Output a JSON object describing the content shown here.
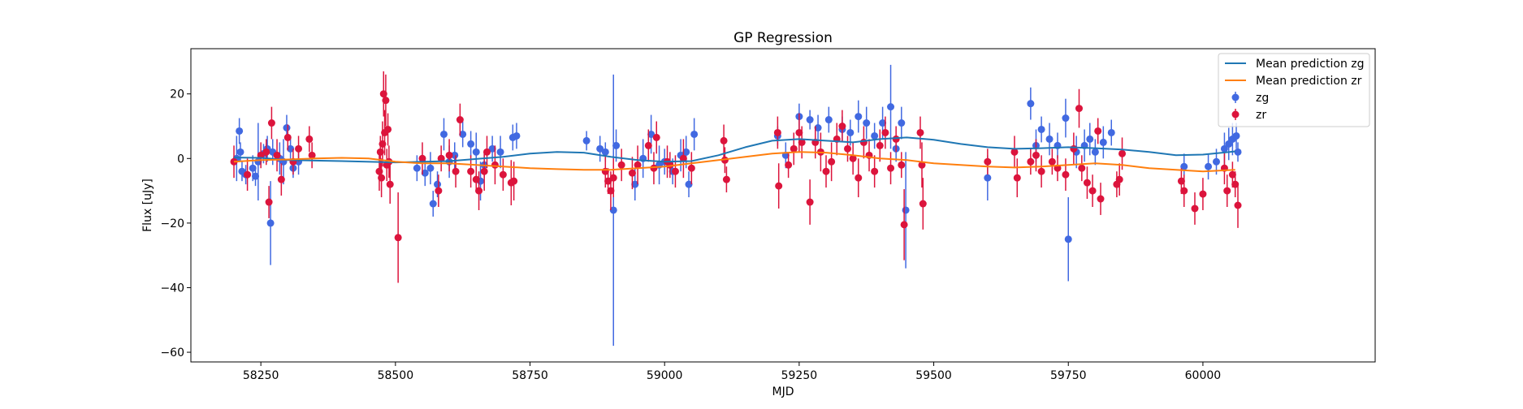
{
  "chart_data": {
    "type": "scatter",
    "title": "GP Regression",
    "xlabel": "MJD",
    "ylabel": "Flux [uJy]",
    "xlim": [
      58120,
      60320
    ],
    "ylim": [
      -63,
      34
    ],
    "xticks": [
      58250,
      58500,
      58750,
      59000,
      59250,
      59500,
      59750,
      60000
    ],
    "yticks": [
      -60,
      -40,
      -20,
      0,
      20
    ],
    "grid": false,
    "legend_position": "top-right",
    "lines": [
      {
        "name": "Mean prediction zg",
        "color": "#1f77b4",
        "x": [
          58200,
          58250,
          58300,
          58400,
          58500,
          58600,
          58700,
          58750,
          58800,
          58850,
          58900,
          58950,
          59000,
          59050,
          59100,
          59150,
          59200,
          59250,
          59300,
          59350,
          59400,
          59450,
          59500,
          59550,
          59600,
          59650,
          59700,
          59750,
          59800,
          59850,
          59900,
          59950,
          60000,
          60050,
          60060
        ],
        "y": [
          0.3,
          0.2,
          -0.5,
          -0.8,
          -1.2,
          -0.8,
          0.5,
          1.5,
          2.0,
          1.8,
          0.5,
          -0.5,
          -1.0,
          -0.8,
          1.0,
          3.5,
          5.5,
          6.0,
          5.5,
          5.0,
          6.0,
          6.5,
          5.8,
          4.5,
          3.5,
          3.0,
          3.2,
          3.5,
          3.2,
          2.8,
          2.0,
          1.0,
          1.2,
          2.0,
          2.2
        ]
      },
      {
        "name": "Mean prediction zr",
        "color": "#ff7f0e",
        "x": [
          58200,
          58250,
          58300,
          58350,
          58400,
          58450,
          58500,
          58550,
          58600,
          58650,
          58700,
          58750,
          58800,
          58850,
          58900,
          58950,
          59000,
          59050,
          59100,
          59150,
          59200,
          59250,
          59300,
          59350,
          59400,
          59450,
          59500,
          59550,
          59600,
          59650,
          59700,
          59750,
          59800,
          59850,
          59900,
          59950,
          60000,
          60060
        ],
        "y": [
          -1.0,
          -0.5,
          -0.3,
          0.0,
          0.2,
          0.0,
          -1.0,
          -1.5,
          -1.5,
          -2.0,
          -2.5,
          -3.0,
          -3.3,
          -3.5,
          -3.5,
          -3.0,
          -2.5,
          -1.5,
          -0.5,
          0.5,
          1.5,
          2.0,
          1.8,
          1.0,
          0.0,
          -0.5,
          -1.5,
          -2.0,
          -2.5,
          -2.8,
          -2.5,
          -2.0,
          -1.5,
          -2.0,
          -3.0,
          -3.5,
          -4.0,
          -3.5
        ]
      }
    ],
    "series": [
      {
        "name": "zg",
        "color": "#4169e1",
        "points": [
          [
            58205,
            0,
            7
          ],
          [
            58210,
            8.5,
            4
          ],
          [
            58212,
            2,
            3
          ],
          [
            58215,
            -4,
            3
          ],
          [
            58222,
            -5,
            3
          ],
          [
            58235,
            -3,
            4
          ],
          [
            58240,
            -5.5,
            3
          ],
          [
            58245,
            -1,
            12
          ],
          [
            58255,
            1.5,
            3
          ],
          [
            58262,
            3,
            4
          ],
          [
            58268,
            -20,
            13
          ],
          [
            58272,
            2,
            4
          ],
          [
            58285,
            0,
            5
          ],
          [
            58292,
            -1,
            7
          ],
          [
            58298,
            9.5,
            4
          ],
          [
            58305,
            3,
            4
          ],
          [
            58310,
            -3,
            3
          ],
          [
            58320,
            -1,
            4
          ],
          [
            58540,
            -3,
            4
          ],
          [
            58555,
            -4.5,
            4
          ],
          [
            58565,
            -3,
            5
          ],
          [
            58570,
            -14,
            4
          ],
          [
            58578,
            -8,
            4
          ],
          [
            58590,
            7.5,
            5
          ],
          [
            58600,
            -1,
            5
          ],
          [
            58610,
            1,
            4
          ],
          [
            58625,
            7.5,
            4
          ],
          [
            58640,
            4.5,
            4
          ],
          [
            58650,
            2,
            6
          ],
          [
            58658,
            -7,
            6
          ],
          [
            58665,
            -2,
            4
          ],
          [
            58680,
            3,
            4
          ],
          [
            58695,
            2,
            5
          ],
          [
            58718,
            6.5,
            4
          ],
          [
            58725,
            7,
            4
          ],
          [
            58855,
            5.5,
            3
          ],
          [
            58880,
            3,
            4
          ],
          [
            58890,
            2,
            3
          ],
          [
            58905,
            -16,
            42
          ],
          [
            58910,
            4,
            5
          ],
          [
            58945,
            -8,
            5
          ],
          [
            58960,
            0,
            6
          ],
          [
            58975,
            7.5,
            6
          ],
          [
            58990,
            -2,
            6
          ],
          [
            59000,
            -1,
            4
          ],
          [
            59015,
            -4,
            4
          ],
          [
            59030,
            1,
            5
          ],
          [
            59040,
            2,
            5
          ],
          [
            59045,
            -8,
            4
          ],
          [
            59055,
            7.5,
            5
          ],
          [
            59210,
            7,
            3
          ],
          [
            59225,
            1,
            4
          ],
          [
            59250,
            13,
            4
          ],
          [
            59270,
            12,
            3
          ],
          [
            59285,
            9.5,
            4
          ],
          [
            59305,
            12,
            4
          ],
          [
            59330,
            9,
            4
          ],
          [
            59345,
            8,
            4
          ],
          [
            59360,
            13,
            5
          ],
          [
            59375,
            11,
            5
          ],
          [
            59390,
            7,
            4
          ],
          [
            59405,
            11,
            5
          ],
          [
            59420,
            16,
            13
          ],
          [
            59430,
            3,
            4
          ],
          [
            59440,
            11,
            5
          ],
          [
            59448,
            -16,
            18
          ],
          [
            59600,
            -6,
            7
          ],
          [
            59680,
            17,
            5
          ],
          [
            59690,
            4,
            5
          ],
          [
            59700,
            9,
            4
          ],
          [
            59715,
            6,
            5
          ],
          [
            59730,
            4,
            4
          ],
          [
            59745,
            12.5,
            6
          ],
          [
            59750,
            -25,
            13
          ],
          [
            59765,
            2,
            5
          ],
          [
            59780,
            4,
            5
          ],
          [
            59790,
            6,
            5
          ],
          [
            59800,
            2,
            4
          ],
          [
            59815,
            5,
            5
          ],
          [
            59830,
            8,
            4
          ],
          [
            59965,
            -2.5,
            4
          ],
          [
            60010,
            -2.5,
            4
          ],
          [
            60025,
            -1,
            4
          ],
          [
            60040,
            3,
            5
          ],
          [
            60048,
            4.5,
            5
          ],
          [
            60055,
            6,
            5
          ],
          [
            60062,
            7,
            4
          ],
          [
            60065,
            2,
            3
          ]
        ]
      },
      {
        "name": "zr",
        "color": "#dc143c",
        "points": [
          [
            58200,
            -1,
            5
          ],
          [
            58225,
            -5,
            5
          ],
          [
            58250,
            1,
            4
          ],
          [
            58260,
            2,
            4
          ],
          [
            58265,
            -13.5,
            5
          ],
          [
            58270,
            11,
            5
          ],
          [
            58280,
            1,
            5
          ],
          [
            58288,
            -6.5,
            5
          ],
          [
            58300,
            6.5,
            4
          ],
          [
            58310,
            -1,
            4
          ],
          [
            58320,
            3,
            4
          ],
          [
            58340,
            6,
            4
          ],
          [
            58345,
            1,
            4
          ],
          [
            58470,
            -4,
            6
          ],
          [
            58472,
            2,
            5
          ],
          [
            58474,
            -6,
            6
          ],
          [
            58476,
            4.5,
            7
          ],
          [
            58478,
            20,
            7
          ],
          [
            58480,
            8,
            7
          ],
          [
            58482,
            18,
            8
          ],
          [
            58484,
            -2,
            5
          ],
          [
            58486,
            9,
            5
          ],
          [
            58488,
            -1,
            5
          ],
          [
            58490,
            -8,
            6
          ],
          [
            58505,
            -24.5,
            14
          ],
          [
            58550,
            0,
            5
          ],
          [
            58580,
            -10,
            5
          ],
          [
            58585,
            0,
            4
          ],
          [
            58600,
            1,
            5
          ],
          [
            58612,
            -4,
            5
          ],
          [
            58620,
            12,
            5
          ],
          [
            58640,
            -4,
            5
          ],
          [
            58650,
            -6.5,
            4
          ],
          [
            58655,
            -10,
            6
          ],
          [
            58665,
            -4,
            6
          ],
          [
            58670,
            2,
            5
          ],
          [
            58685,
            -2,
            6
          ],
          [
            58700,
            -5,
            5
          ],
          [
            58715,
            -7.5,
            7
          ],
          [
            58720,
            -7,
            6
          ],
          [
            58890,
            -4,
            5
          ],
          [
            58895,
            -7,
            4
          ],
          [
            58900,
            -10,
            6
          ],
          [
            58905,
            -6,
            6
          ],
          [
            58920,
            -2,
            5
          ],
          [
            58940,
            -4.5,
            5
          ],
          [
            58950,
            -2,
            6
          ],
          [
            58970,
            4,
            5
          ],
          [
            58980,
            -3,
            5
          ],
          [
            58985,
            6.5,
            5
          ],
          [
            59005,
            -1,
            5
          ],
          [
            59010,
            -2,
            4
          ],
          [
            59020,
            -4,
            5
          ],
          [
            59035,
            0,
            6
          ],
          [
            59050,
            -3,
            5
          ],
          [
            59110,
            5.5,
            5
          ],
          [
            59112,
            -0.5,
            4
          ],
          [
            59115,
            -6.5,
            4
          ],
          [
            59210,
            8,
            5
          ],
          [
            59212,
            -8.5,
            7
          ],
          [
            59230,
            -2,
            4
          ],
          [
            59240,
            3,
            5
          ],
          [
            59250,
            8,
            6
          ],
          [
            59255,
            5,
            5
          ],
          [
            59270,
            -13.5,
            7
          ],
          [
            59280,
            5,
            5
          ],
          [
            59290,
            2,
            6
          ],
          [
            59300,
            -4,
            5
          ],
          [
            59310,
            -1,
            6
          ],
          [
            59320,
            6,
            5
          ],
          [
            59330,
            10,
            5
          ],
          [
            59340,
            3,
            4
          ],
          [
            59350,
            0,
            5
          ],
          [
            59360,
            -6,
            6
          ],
          [
            59370,
            5,
            5
          ],
          [
            59380,
            1,
            5
          ],
          [
            59390,
            -4,
            5
          ],
          [
            59400,
            4,
            5
          ],
          [
            59410,
            8,
            5
          ],
          [
            59420,
            -3,
            5
          ],
          [
            59430,
            6,
            4
          ],
          [
            59440,
            -2,
            4
          ],
          [
            59445,
            -20.5,
            11
          ],
          [
            59475,
            8,
            5
          ],
          [
            59478,
            -2,
            7
          ],
          [
            59480,
            -14,
            8
          ],
          [
            59600,
            -1,
            4
          ],
          [
            59650,
            2,
            5
          ],
          [
            59655,
            -6,
            6
          ],
          [
            59680,
            -1,
            4
          ],
          [
            59690,
            1,
            5
          ],
          [
            59700,
            -4,
            5
          ],
          [
            59720,
            -1,
            4
          ],
          [
            59730,
            -3,
            4
          ],
          [
            59745,
            -5,
            5
          ],
          [
            59760,
            3,
            5
          ],
          [
            59770,
            15.5,
            6
          ],
          [
            59775,
            -3,
            4
          ],
          [
            59785,
            -7.5,
            5
          ],
          [
            59795,
            -10,
            5
          ],
          [
            59805,
            8.5,
            4
          ],
          [
            59810,
            -12.5,
            5
          ],
          [
            59840,
            -8,
            4
          ],
          [
            59845,
            -6.5,
            5
          ],
          [
            59850,
            1.5,
            5
          ],
          [
            59960,
            -7,
            4
          ],
          [
            59965,
            -10,
            5
          ],
          [
            59985,
            -15.5,
            5
          ],
          [
            60000,
            -11,
            5
          ],
          [
            60040,
            -3,
            5
          ],
          [
            60045,
            -10,
            5
          ],
          [
            60055,
            -5,
            4
          ],
          [
            60060,
            -8,
            4
          ],
          [
            60065,
            -14.5,
            7
          ]
        ]
      }
    ]
  }
}
